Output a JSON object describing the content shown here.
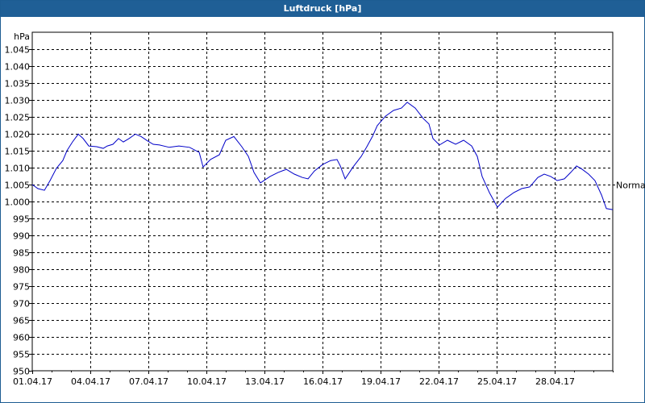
{
  "window": {
    "title": "Luftdruck [hPa]"
  },
  "colors": {
    "titlebar": "#1f5f96",
    "line": "#0000c8",
    "grid": "#000000",
    "background": "#ffffff"
  },
  "chart_data": {
    "type": "line",
    "title": "Luftdruck [hPa]",
    "xlabel": "",
    "ylabel": "hPa",
    "ylim": [
      950,
      1050
    ],
    "xlim": [
      "01.04.17",
      "01.05.17"
    ],
    "grid": true,
    "yticks": [
      "1.045",
      "1.040",
      "1.035",
      "1.030",
      "1.025",
      "1.020",
      "1.015",
      "1.010",
      "1.005",
      "1.000",
      "995",
      "990",
      "985",
      "980",
      "975",
      "970",
      "965",
      "960",
      "955",
      "950"
    ],
    "ytick_values": [
      1045,
      1040,
      1035,
      1030,
      1025,
      1020,
      1015,
      1010,
      1005,
      1000,
      995,
      990,
      985,
      980,
      975,
      970,
      965,
      960,
      955,
      950
    ],
    "xticks": [
      "01.04.17",
      "04.04.17",
      "07.04.17",
      "10.04.17",
      "13.04.17",
      "16.04.17",
      "19.04.17",
      "22.04.17",
      "25.04.17",
      "28.04.17"
    ],
    "xtick_days": [
      0,
      3,
      6,
      9,
      12,
      15,
      18,
      21,
      24,
      27
    ],
    "annotations": [
      {
        "text": "Normal",
        "value": 1005,
        "position": "right"
      }
    ],
    "series": [
      {
        "name": "Luftdruck",
        "x_days": [
          0,
          0.29,
          0.63,
          0.92,
          1.25,
          1.58,
          1.79,
          2.08,
          2.38,
          2.63,
          2.92,
          3.33,
          3.67,
          3.88,
          4.17,
          4.46,
          4.71,
          5.0,
          5.33,
          5.63,
          5.96,
          6.25,
          6.58,
          7.08,
          7.58,
          8.13,
          8.63,
          8.83,
          9.21,
          9.67,
          10.0,
          10.42,
          10.83,
          11.17,
          11.46,
          11.79,
          12.29,
          12.71,
          13.13,
          13.54,
          13.96,
          14.25,
          14.58,
          15.0,
          15.42,
          15.75,
          15.92,
          16.17,
          16.58,
          17.0,
          17.29,
          17.58,
          17.83,
          18.25,
          18.67,
          19.08,
          19.38,
          19.79,
          20.21,
          20.5,
          20.71,
          21.04,
          21.46,
          21.88,
          22.29,
          22.71,
          23.0,
          23.25,
          23.63,
          24.04,
          24.46,
          24.88,
          25.29,
          25.71,
          26.13,
          26.46,
          26.79,
          27.13,
          27.5,
          27.83,
          28.13,
          28.42,
          28.75,
          29.08,
          29.42,
          29.67,
          30.0
        ],
        "values": [
          1005.0,
          1003.8,
          1003.3,
          1006.2,
          1009.8,
          1012.1,
          1015.0,
          1017.6,
          1019.9,
          1018.6,
          1016.4,
          1016.2,
          1015.7,
          1016.4,
          1016.9,
          1018.6,
          1017.6,
          1018.6,
          1019.9,
          1019.2,
          1017.9,
          1016.9,
          1016.7,
          1016.0,
          1016.4,
          1016.0,
          1014.5,
          1010.2,
          1012.4,
          1013.8,
          1018.1,
          1019.2,
          1016.2,
          1013.3,
          1008.6,
          1005.5,
          1007.4,
          1008.6,
          1009.5,
          1008.1,
          1007.1,
          1006.7,
          1009.0,
          1010.9,
          1012.1,
          1012.4,
          1010.5,
          1006.7,
          1010.2,
          1013.3,
          1016.2,
          1019.2,
          1022.4,
          1025.2,
          1026.9,
          1027.6,
          1029.3,
          1027.6,
          1024.5,
          1022.9,
          1018.6,
          1016.7,
          1018.1,
          1016.9,
          1018.1,
          1016.4,
          1013.3,
          1007.4,
          1002.6,
          998.3,
          1000.9,
          1002.6,
          1003.8,
          1004.3,
          1007.1,
          1008.1,
          1007.4,
          1006.2,
          1006.7,
          1008.6,
          1010.5,
          1009.5,
          1008.1,
          1006.2,
          1001.9,
          997.9,
          997.6
        ]
      }
    ]
  }
}
